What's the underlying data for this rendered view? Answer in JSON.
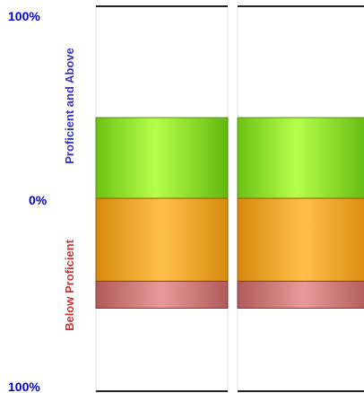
{
  "chart_data": {
    "type": "bar",
    "subtype": "diverging-stacked",
    "axis": {
      "top_label": "100%",
      "zero_label": "0%",
      "bottom_label": "100%",
      "range": [
        -100,
        100
      ]
    },
    "side_labels": {
      "above": "Proficient and Above",
      "below": "Below Proficient"
    },
    "bars": [
      {
        "segments": [
          {
            "level": "green",
            "position": "above",
            "value": 42
          },
          {
            "level": "orange",
            "position": "below",
            "value": 43
          },
          {
            "level": "red",
            "position": "below",
            "value": 14
          }
        ]
      },
      {
        "segments": [
          {
            "level": "green",
            "position": "above",
            "value": 42
          },
          {
            "level": "orange",
            "position": "below",
            "value": 43
          },
          {
            "level": "red",
            "position": "below",
            "value": 14
          }
        ]
      }
    ],
    "colors": {
      "green": "#7ed321",
      "orange": "#e8a020",
      "red": "#c47070",
      "label_blue": "#0000cc",
      "side_above": "#3333cc",
      "side_below": "#cc3333"
    }
  }
}
